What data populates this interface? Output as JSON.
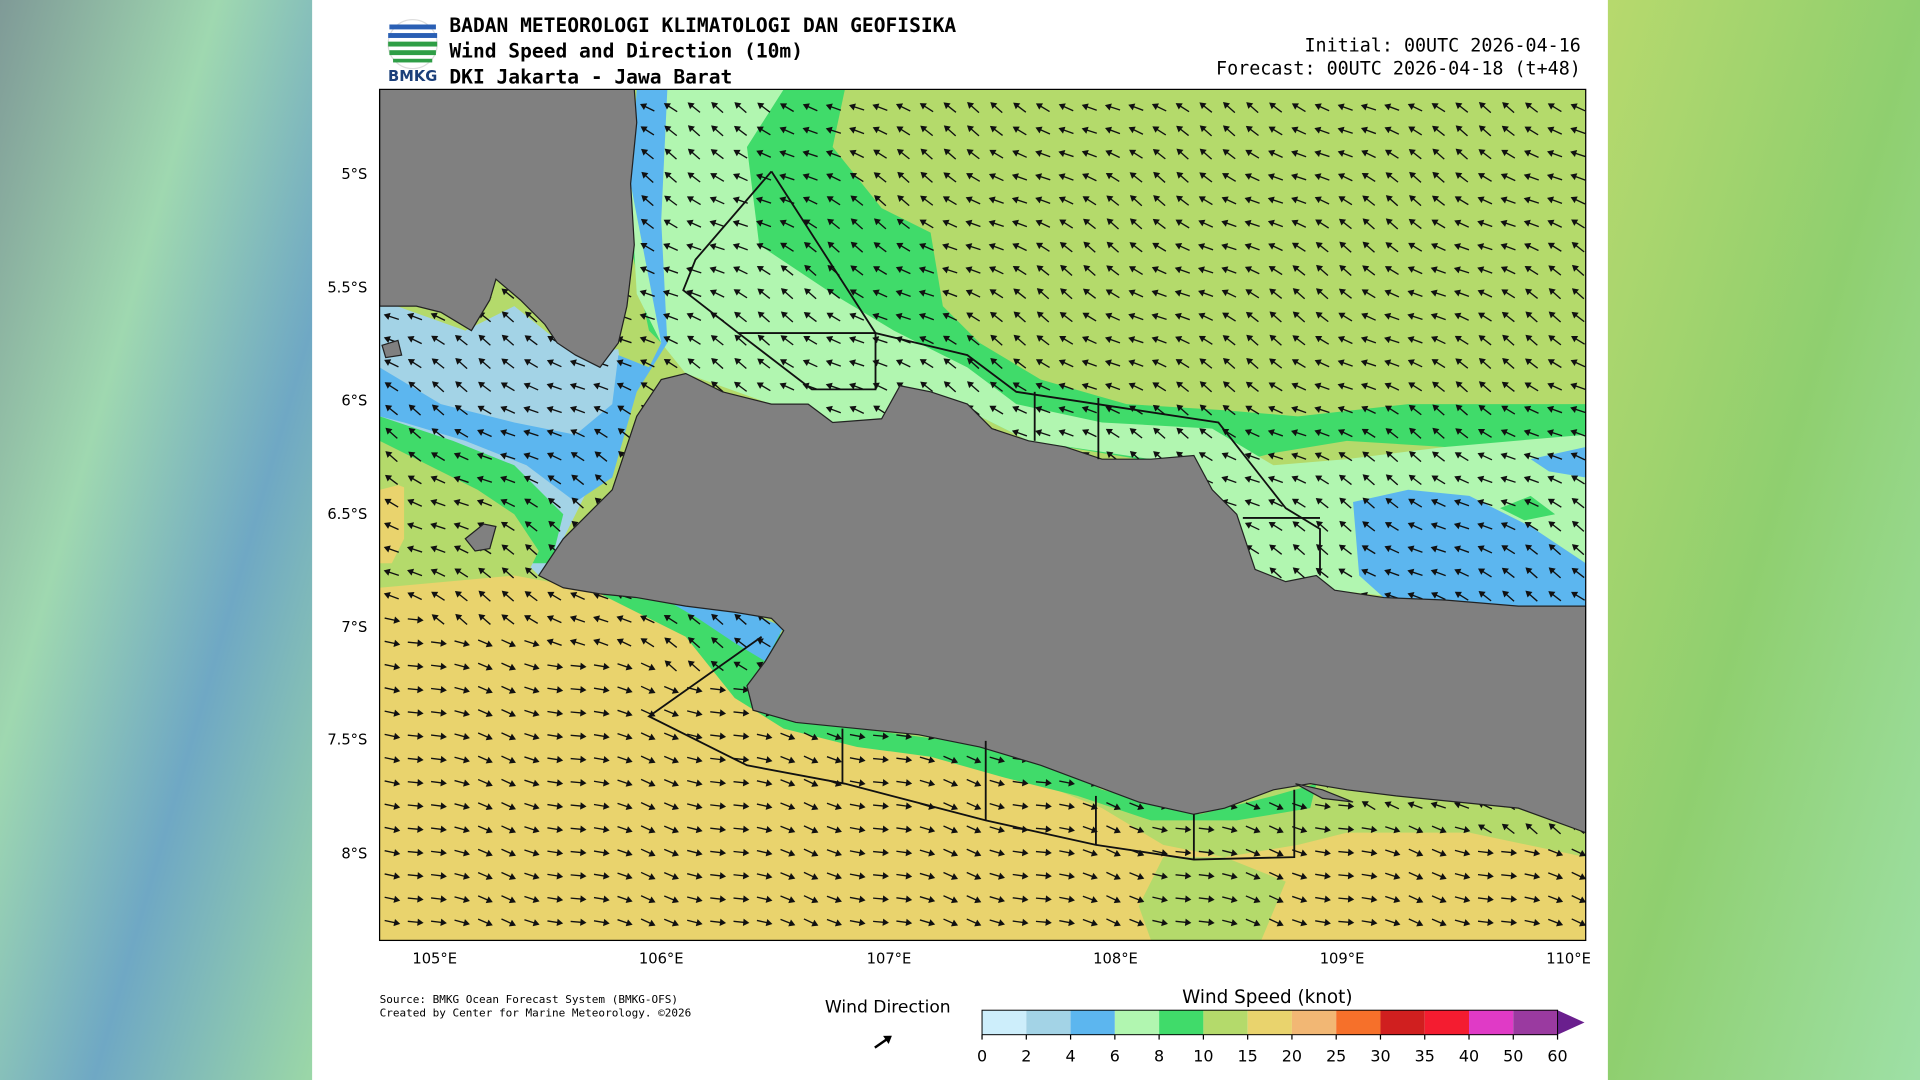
{
  "header": {
    "logo_text": "BMKG",
    "organization": "BADAN METEOROLOGI KLIMATOLOGI DAN GEOFISIKA",
    "product": "Wind Speed and Direction (10m)",
    "region": "DKI Jakarta - Jawa Barat",
    "initial": "Initial: 00UTC 2026-04-16",
    "forecast": "Forecast: 00UTC 2026-04-18 (t+48)"
  },
  "axes": {
    "lat_labels": [
      "5°S",
      "5.5°S",
      "6°S",
      "6.5°S",
      "7°S",
      "7.5°S",
      "8°S"
    ],
    "lon_labels": [
      "105°E",
      "106°E",
      "107°E",
      "108°E",
      "109°E",
      "110°E"
    ]
  },
  "source": [
    "Source: BMKG Ocean Forecast System (BMKG-OFS)",
    "Created by Center for Marine Meteorology. ©2026"
  ],
  "legend": {
    "label": "Wind Direction"
  },
  "colorbar": {
    "title": "Wind Speed (knot)",
    "levels": [
      0,
      2,
      4,
      6,
      8,
      10,
      15,
      20,
      25,
      30,
      35,
      40,
      50,
      60
    ],
    "colors": [
      "#cdeefb",
      "#a3d3e6",
      "#5cb6ef",
      "#b1f6b0",
      "#40db6a",
      "#b4da6b",
      "#e9d36d",
      "#f2b774",
      "#f6702a",
      "#d01f1f",
      "#f41c30",
      "#e03ac6",
      "#9a3aa0"
    ],
    "extend_color": "#6a1f8e"
  }
}
